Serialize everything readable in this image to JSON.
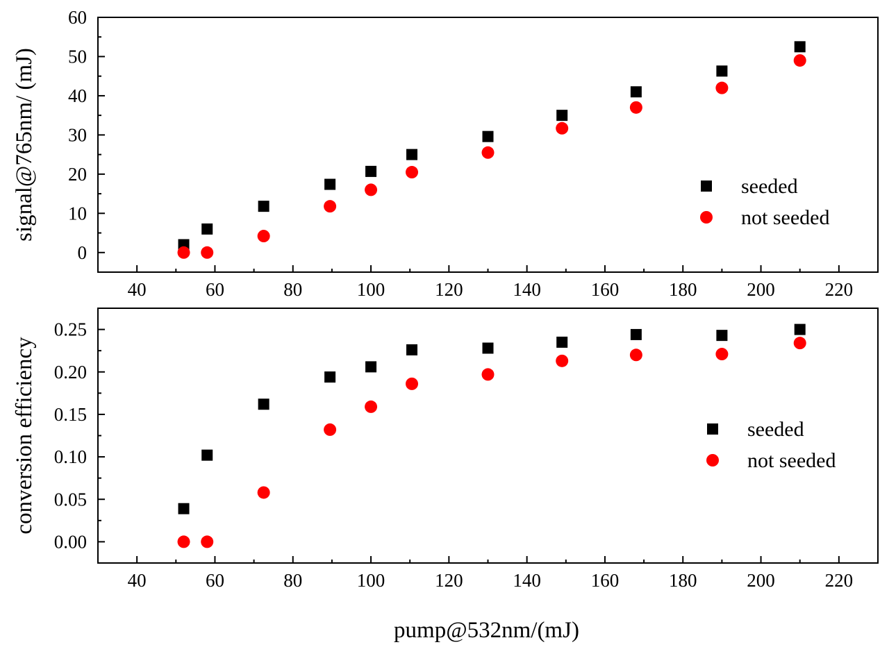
{
  "colors": {
    "seeded": "#000000",
    "not_seeded": "#ff0000",
    "axis": "#000000",
    "background": "#ffffff"
  },
  "chart_data": [
    {
      "type": "scatter",
      "title": "",
      "xlabel": "",
      "ylabel": "signal@765nm/ (mJ)",
      "xlim": [
        30,
        230
      ],
      "ylim": [
        -5,
        60
      ],
      "xticks": [
        40,
        60,
        80,
        100,
        120,
        140,
        160,
        180,
        200,
        220
      ],
      "yticks": [
        0,
        10,
        20,
        30,
        40,
        50,
        60
      ],
      "ytick_labels": [
        "0",
        "10",
        "20",
        "30",
        "40",
        "50",
        "60"
      ],
      "grid": false,
      "legend": {
        "placement": "right"
      },
      "series": [
        {
          "name": "seeded",
          "marker": "square",
          "color": "#000000",
          "x": [
            52,
            58,
            72.5,
            89.5,
            100,
            110.5,
            130,
            149,
            168,
            190,
            210
          ],
          "y": [
            2,
            6,
            11.8,
            17.4,
            20.7,
            25,
            29.6,
            35,
            41,
            46.3,
            52.5
          ]
        },
        {
          "name": "not seeded",
          "marker": "circle",
          "color": "#ff0000",
          "x": [
            52,
            58,
            72.5,
            89.5,
            100,
            110.5,
            130,
            149,
            168,
            190,
            210
          ],
          "y": [
            0,
            0,
            4.2,
            11.8,
            16,
            20.5,
            25.5,
            31.7,
            37,
            42,
            49
          ]
        }
      ]
    },
    {
      "type": "scatter",
      "title": "",
      "xlabel": "pump@532nm/(mJ)",
      "ylabel": "conversion efficiency",
      "xlim": [
        30,
        230
      ],
      "ylim": [
        -0.025,
        0.275
      ],
      "xticks": [
        40,
        60,
        80,
        100,
        120,
        140,
        160,
        180,
        200,
        220
      ],
      "yticks": [
        0,
        0.05,
        0.1,
        0.15,
        0.2,
        0.25
      ],
      "ytick_labels": [
        "0.00",
        "0.05",
        "0.10",
        "0.15",
        "0.20",
        "0.25"
      ],
      "grid": false,
      "legend": {
        "placement": "right"
      },
      "series": [
        {
          "name": "seeded",
          "marker": "square",
          "color": "#000000",
          "x": [
            52,
            58,
            72.5,
            89.5,
            100,
            110.5,
            130,
            149,
            168,
            190,
            210
          ],
          "y": [
            0.039,
            0.102,
            0.162,
            0.194,
            0.206,
            0.226,
            0.228,
            0.235,
            0.244,
            0.243,
            0.25
          ]
        },
        {
          "name": "not seeded",
          "marker": "circle",
          "color": "#ff0000",
          "x": [
            52,
            58,
            72.5,
            89.5,
            100,
            110.5,
            130,
            149,
            168,
            190,
            210
          ],
          "y": [
            0,
            0,
            0.058,
            0.132,
            0.159,
            0.186,
            0.197,
            0.213,
            0.22,
            0.221,
            0.234
          ]
        }
      ]
    }
  ]
}
